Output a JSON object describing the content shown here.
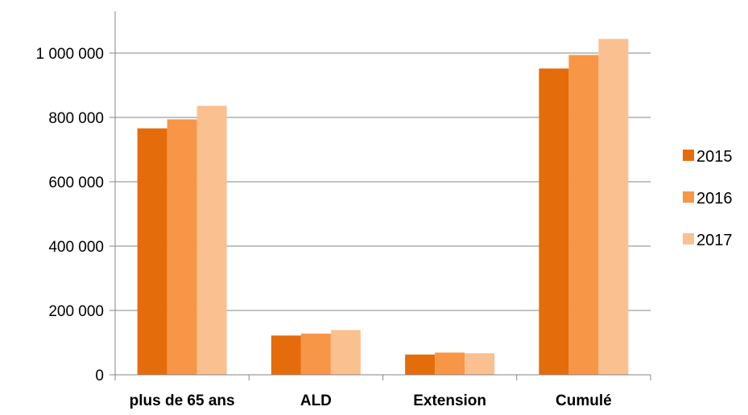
{
  "chart_data": {
    "type": "bar",
    "title": "",
    "xlabel": "",
    "ylabel": "",
    "categories": [
      "plus de 65 ans",
      "ALD",
      "Extension",
      "Cumulé"
    ],
    "series": [
      {
        "name": "2015",
        "values": [
          766000,
          122000,
          63000,
          952000
        ]
      },
      {
        "name": "2016",
        "values": [
          794000,
          128000,
          69000,
          994000
        ]
      },
      {
        "name": "2017",
        "values": [
          836000,
          139000,
          67000,
          1044000
        ]
      }
    ],
    "ylim": [
      0,
      1000000
    ],
    "yticks": [
      0,
      200000,
      400000,
      600000,
      800000,
      1000000
    ],
    "ytick_labels": [
      "0",
      "200 000",
      "400 000",
      "600 000",
      "800 000",
      "1 000 000"
    ],
    "grid": true,
    "legend_position": "right",
    "colors": [
      "#e46c0a",
      "#f79646",
      "#fac090"
    ]
  }
}
